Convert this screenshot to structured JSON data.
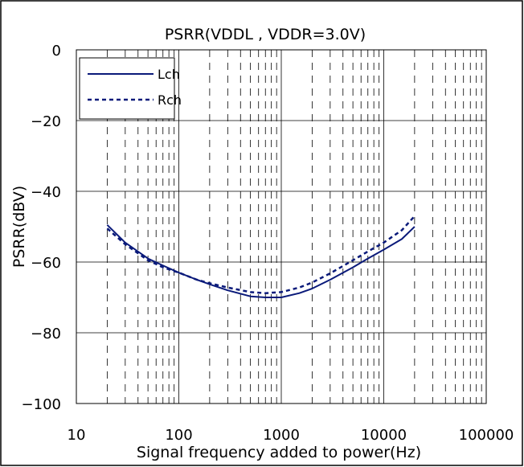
{
  "chart_data": {
    "type": "line",
    "title": "PSRR(VDDL , VDDR=3.0V)",
    "xlabel": "Signal frequency added to power(Hz)",
    "ylabel": "PSRR(dBV)",
    "x_scale": "log",
    "xlim": [
      10,
      100000
    ],
    "ylim": [
      -100,
      0
    ],
    "x_ticks": [
      10,
      100,
      1000,
      10000,
      100000
    ],
    "x_tick_labels": [
      "10",
      "100",
      "1000",
      "10000",
      "100000"
    ],
    "y_ticks": [
      0,
      -20,
      -40,
      -60,
      -80,
      -100
    ],
    "y_tick_labels": [
      "0",
      "−20",
      "−40",
      "−60",
      "−80",
      "−100"
    ],
    "grid": true,
    "legend_position": "top-left",
    "series": [
      {
        "name": "Lch",
        "style": "solid",
        "color": "#0a1a7a",
        "x": [
          20,
          30,
          50,
          70,
          100,
          150,
          200,
          300,
          500,
          700,
          1000,
          1500,
          2000,
          3000,
          5000,
          7000,
          10000,
          15000,
          20000
        ],
        "y": [
          -49.5,
          -54.5,
          -59,
          -61,
          -63,
          -65,
          -66.3,
          -68,
          -69.7,
          -70,
          -70,
          -68.8,
          -67.5,
          -65,
          -61.5,
          -59,
          -56.5,
          -53.5,
          -50
        ]
      },
      {
        "name": "Rch",
        "style": "dashed",
        "color": "#0a1a7a",
        "x": [
          20,
          30,
          50,
          70,
          100,
          150,
          200,
          300,
          500,
          700,
          1000,
          1500,
          2000,
          3000,
          5000,
          7000,
          10000,
          15000,
          20000
        ],
        "y": [
          -50.5,
          -55,
          -59.5,
          -61.5,
          -63,
          -65,
          -66,
          -67.2,
          -68.5,
          -68.8,
          -68.5,
          -67.2,
          -65.8,
          -63.2,
          -59.5,
          -57,
          -54.5,
          -51,
          -47
        ]
      }
    ]
  },
  "colors": {
    "axis": "#000000",
    "grid_major": "#000000",
    "grid_minor": "#000000",
    "series": "#0a1a7a"
  }
}
